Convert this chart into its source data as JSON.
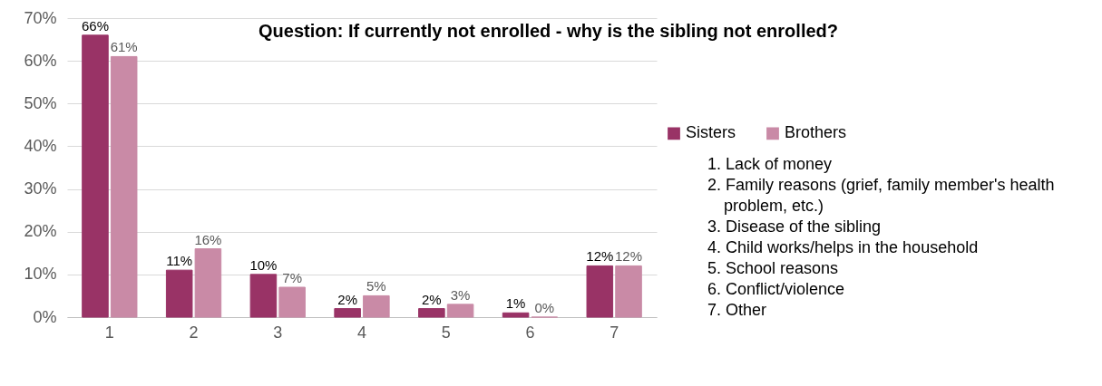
{
  "chart_data": {
    "type": "bar",
    "title": "Question: If currently not enrolled - why is the sibling not enrolled?",
    "categories": [
      "1",
      "2",
      "3",
      "4",
      "5",
      "6",
      "7"
    ],
    "series": [
      {
        "name": "Sisters",
        "color": "#993366",
        "values": [
          66,
          11,
          10,
          2,
          2,
          1,
          12
        ],
        "value_labels": [
          "66%",
          "11%",
          "10%",
          "2%",
          "2%",
          "1%",
          "12%"
        ]
      },
      {
        "name": "Brothers",
        "color": "#c98aa6",
        "values": [
          61,
          16,
          7,
          5,
          3,
          0,
          12
        ],
        "value_labels": [
          "61%",
          "16%",
          "7%",
          "5%",
          "3%",
          "0%",
          "12%"
        ]
      }
    ],
    "ylim": [
      0,
      70
    ],
    "yticks": [
      {
        "value": 0,
        "label": "0%"
      },
      {
        "value": 10,
        "label": "10%"
      },
      {
        "value": 20,
        "label": "20%"
      },
      {
        "value": 30,
        "label": "30%"
      },
      {
        "value": 40,
        "label": "40%"
      },
      {
        "value": 50,
        "label": "50%"
      },
      {
        "value": 60,
        "label": "60%"
      },
      {
        "value": 70,
        "label": "70%"
      }
    ],
    "grid": "y",
    "legend": "right",
    "annotations": [
      "1. Lack of money",
      "2. Family reasons (grief, family member's health problem, etc.)",
      "3. Disease of the sibling",
      "4. Child works/helps in the household",
      "5. School reasons",
      "6. Conflict/violence",
      "7. Other"
    ]
  }
}
